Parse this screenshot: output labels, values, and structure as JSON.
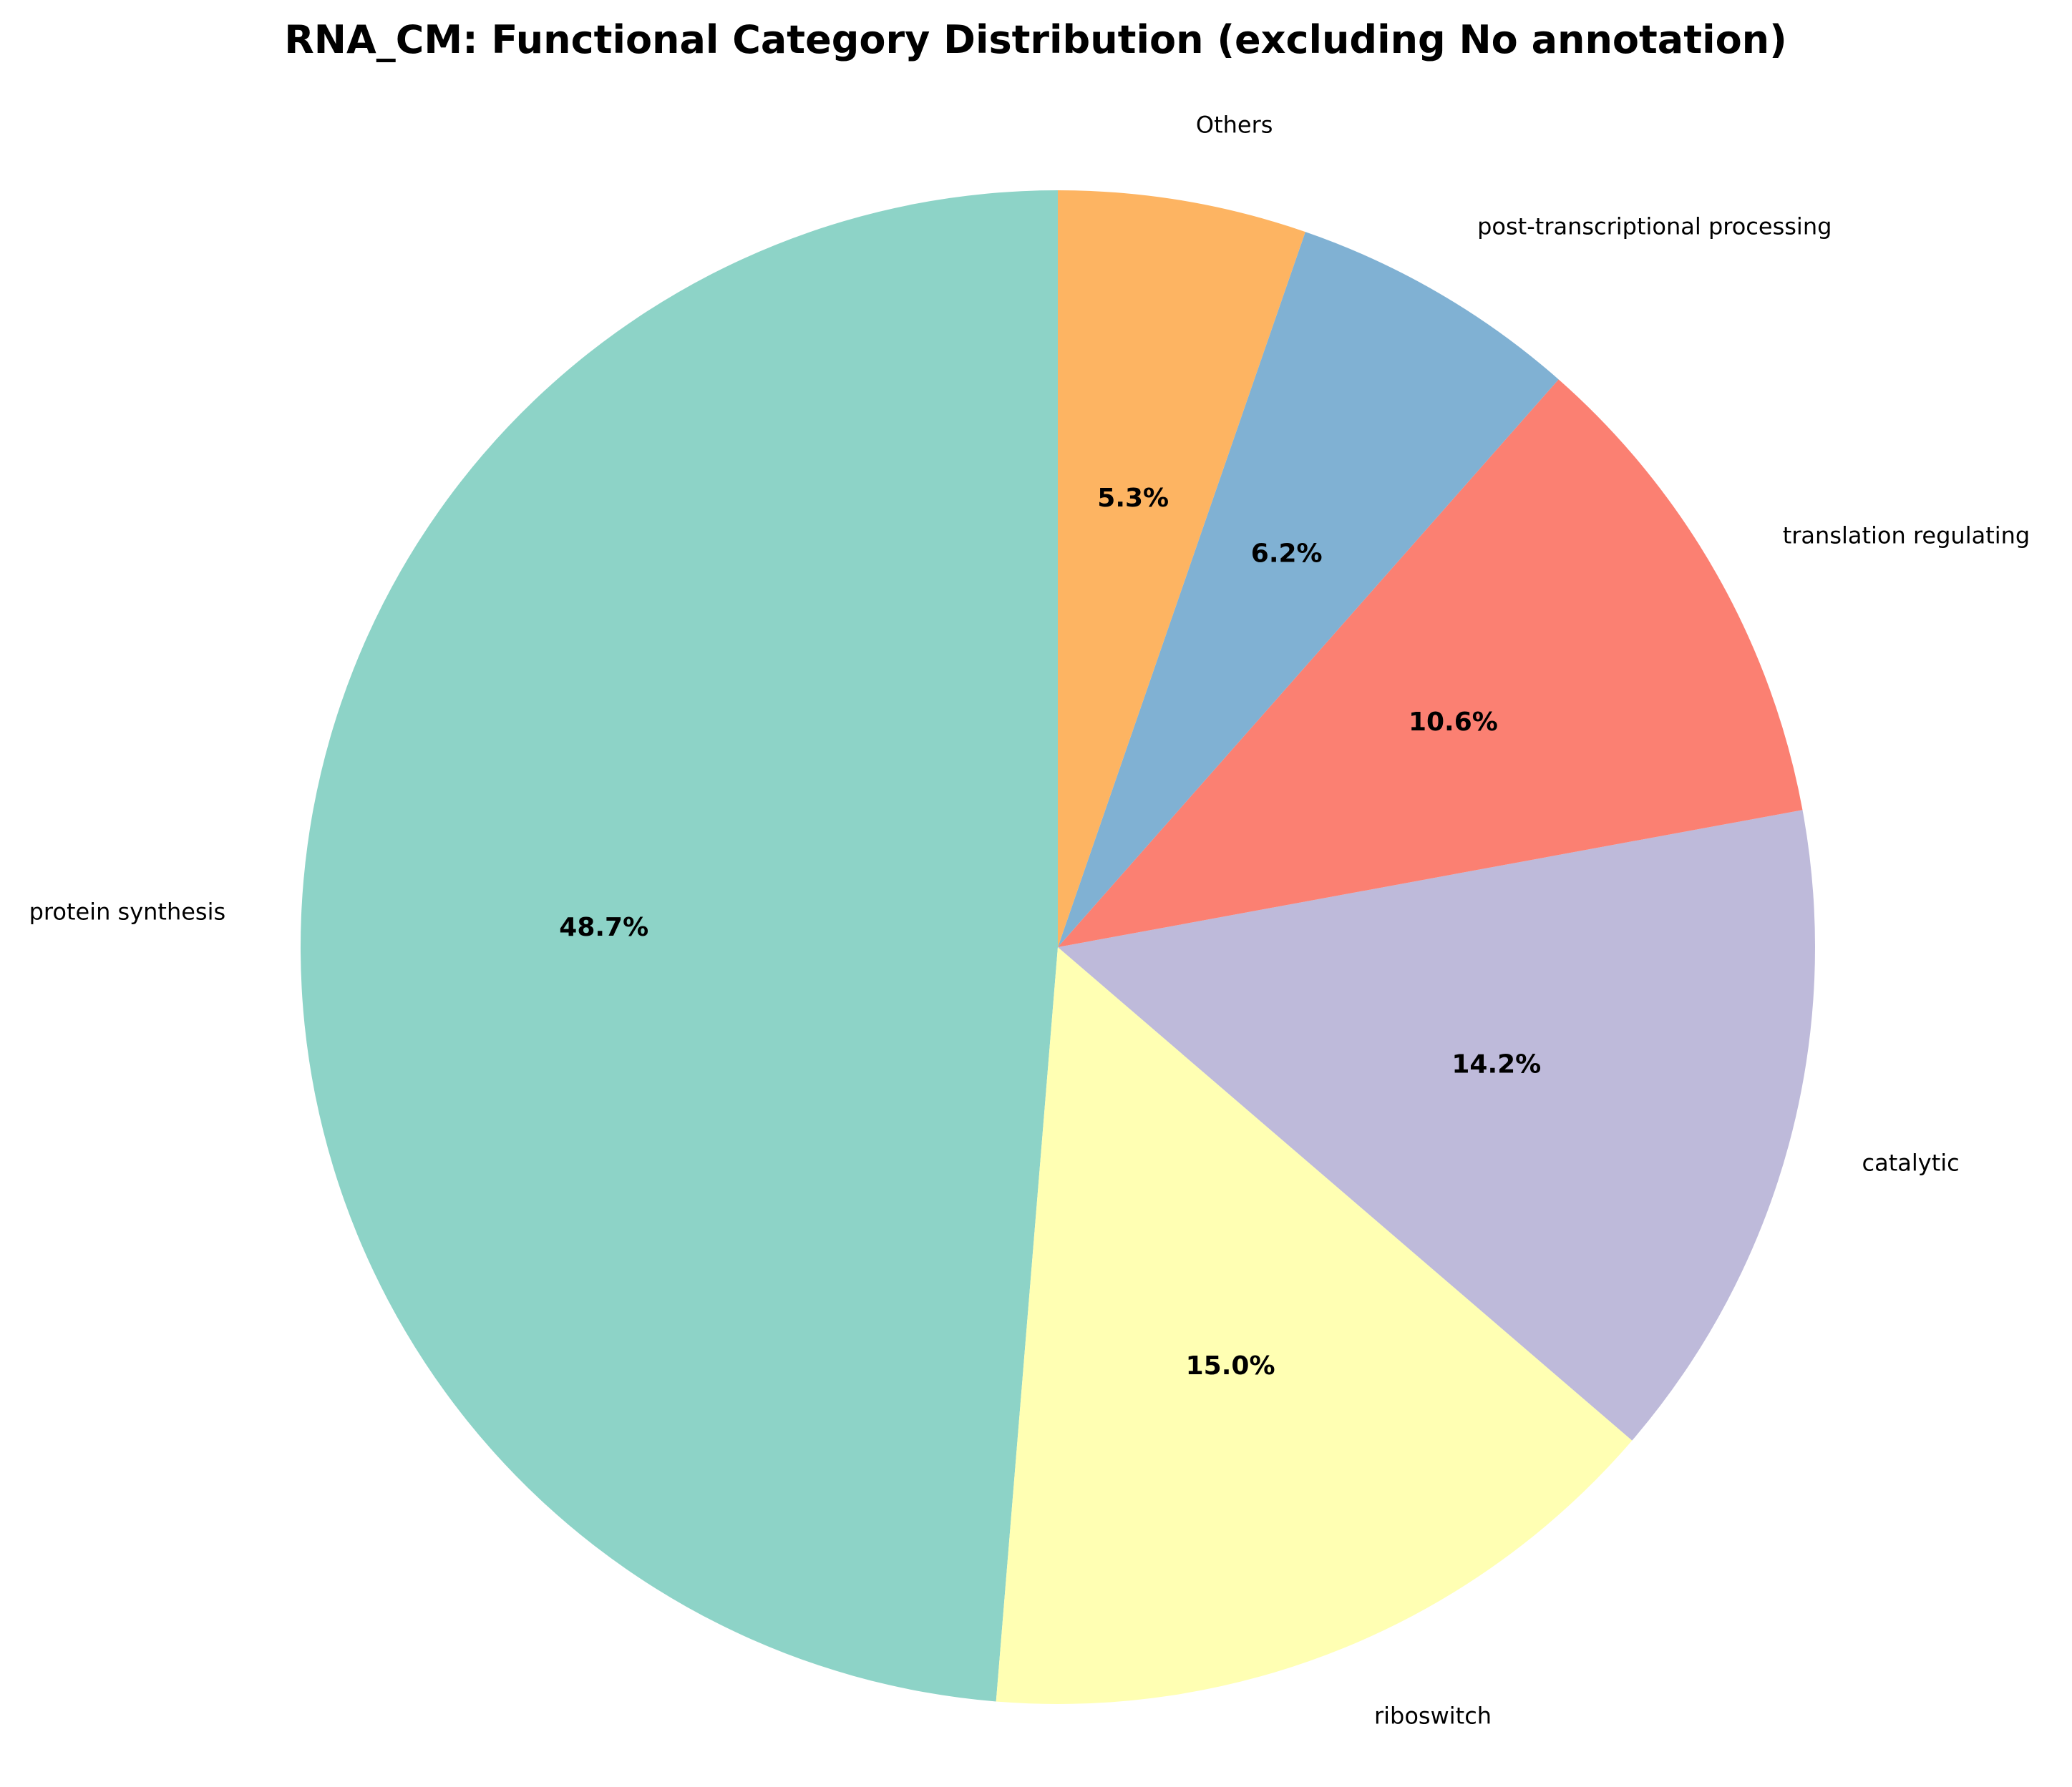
{
  "chart_data": {
    "type": "pie",
    "title": "RNA_CM: Functional Category Distribution (excluding No annotation)",
    "start_angle_deg": 90,
    "direction": "counterclockwise",
    "slices": [
      {
        "label": "protein synthesis",
        "value": 48.7,
        "pct_label": "48.7%",
        "color": "#8dd3c7"
      },
      {
        "label": "riboswitch",
        "value": 15.0,
        "pct_label": "15.0%",
        "color": "#ffffb3"
      },
      {
        "label": "catalytic",
        "value": 14.2,
        "pct_label": "14.2%",
        "color": "#bebada"
      },
      {
        "label": "translation regulating",
        "value": 10.6,
        "pct_label": "10.6%",
        "color": "#fb8072"
      },
      {
        "label": "post-transcriptional processing",
        "value": 6.2,
        "pct_label": "6.2%",
        "color": "#80b1d3"
      },
      {
        "label": "Others",
        "value": 5.3,
        "pct_label": "5.3%",
        "color": "#fdb462"
      }
    ]
  }
}
